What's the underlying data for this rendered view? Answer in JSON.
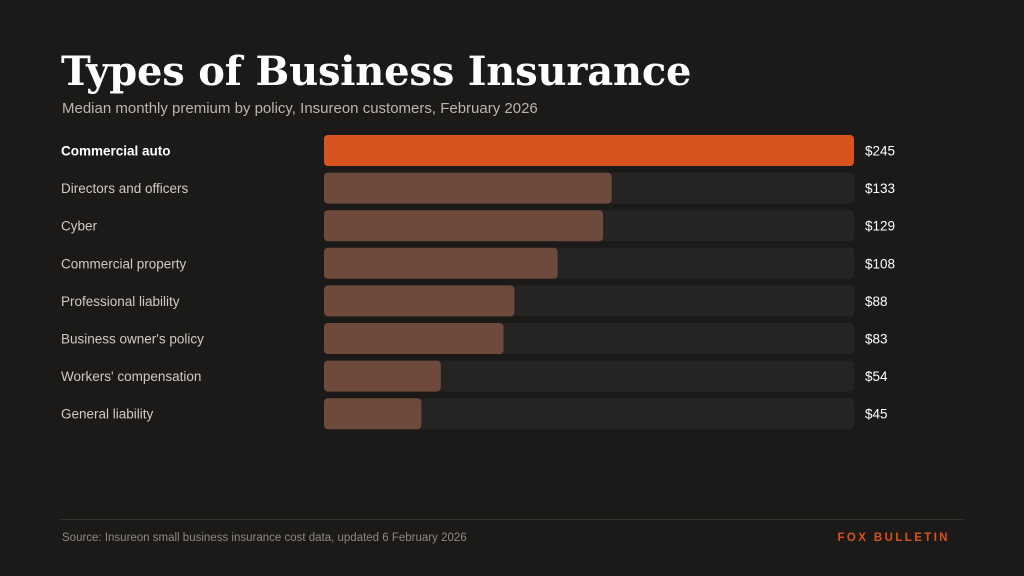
{
  "header": {
    "title": "Types of Business Insurance",
    "subtitle": "Median monthly premium by policy, Insureon customers, February 2026"
  },
  "chart_data": {
    "type": "bar",
    "orientation": "horizontal",
    "categories": [
      "Commercial auto",
      "Directors and officers",
      "Cyber",
      "Commercial property",
      "Professional liability",
      "Business owner's policy",
      "Workers' compensation",
      "General liability"
    ],
    "values": [
      245,
      133,
      129,
      108,
      88,
      83,
      54,
      45
    ],
    "value_labels": [
      "$245",
      "$133",
      "$129",
      "$108",
      "$88",
      "$83",
      "$54",
      "$45"
    ],
    "xlim": [
      0,
      245
    ],
    "highlight_index": 0,
    "grid": false,
    "legend": "none",
    "colors": {
      "highlight": "#d9531e",
      "bar": "#6e4a3d",
      "track": "#252422"
    }
  },
  "footer": {
    "source": "Source: Insureon small business insurance cost data, updated 6 February 2026",
    "brand": "FOX BULLETIN",
    "brand_color": "#d9531e"
  }
}
